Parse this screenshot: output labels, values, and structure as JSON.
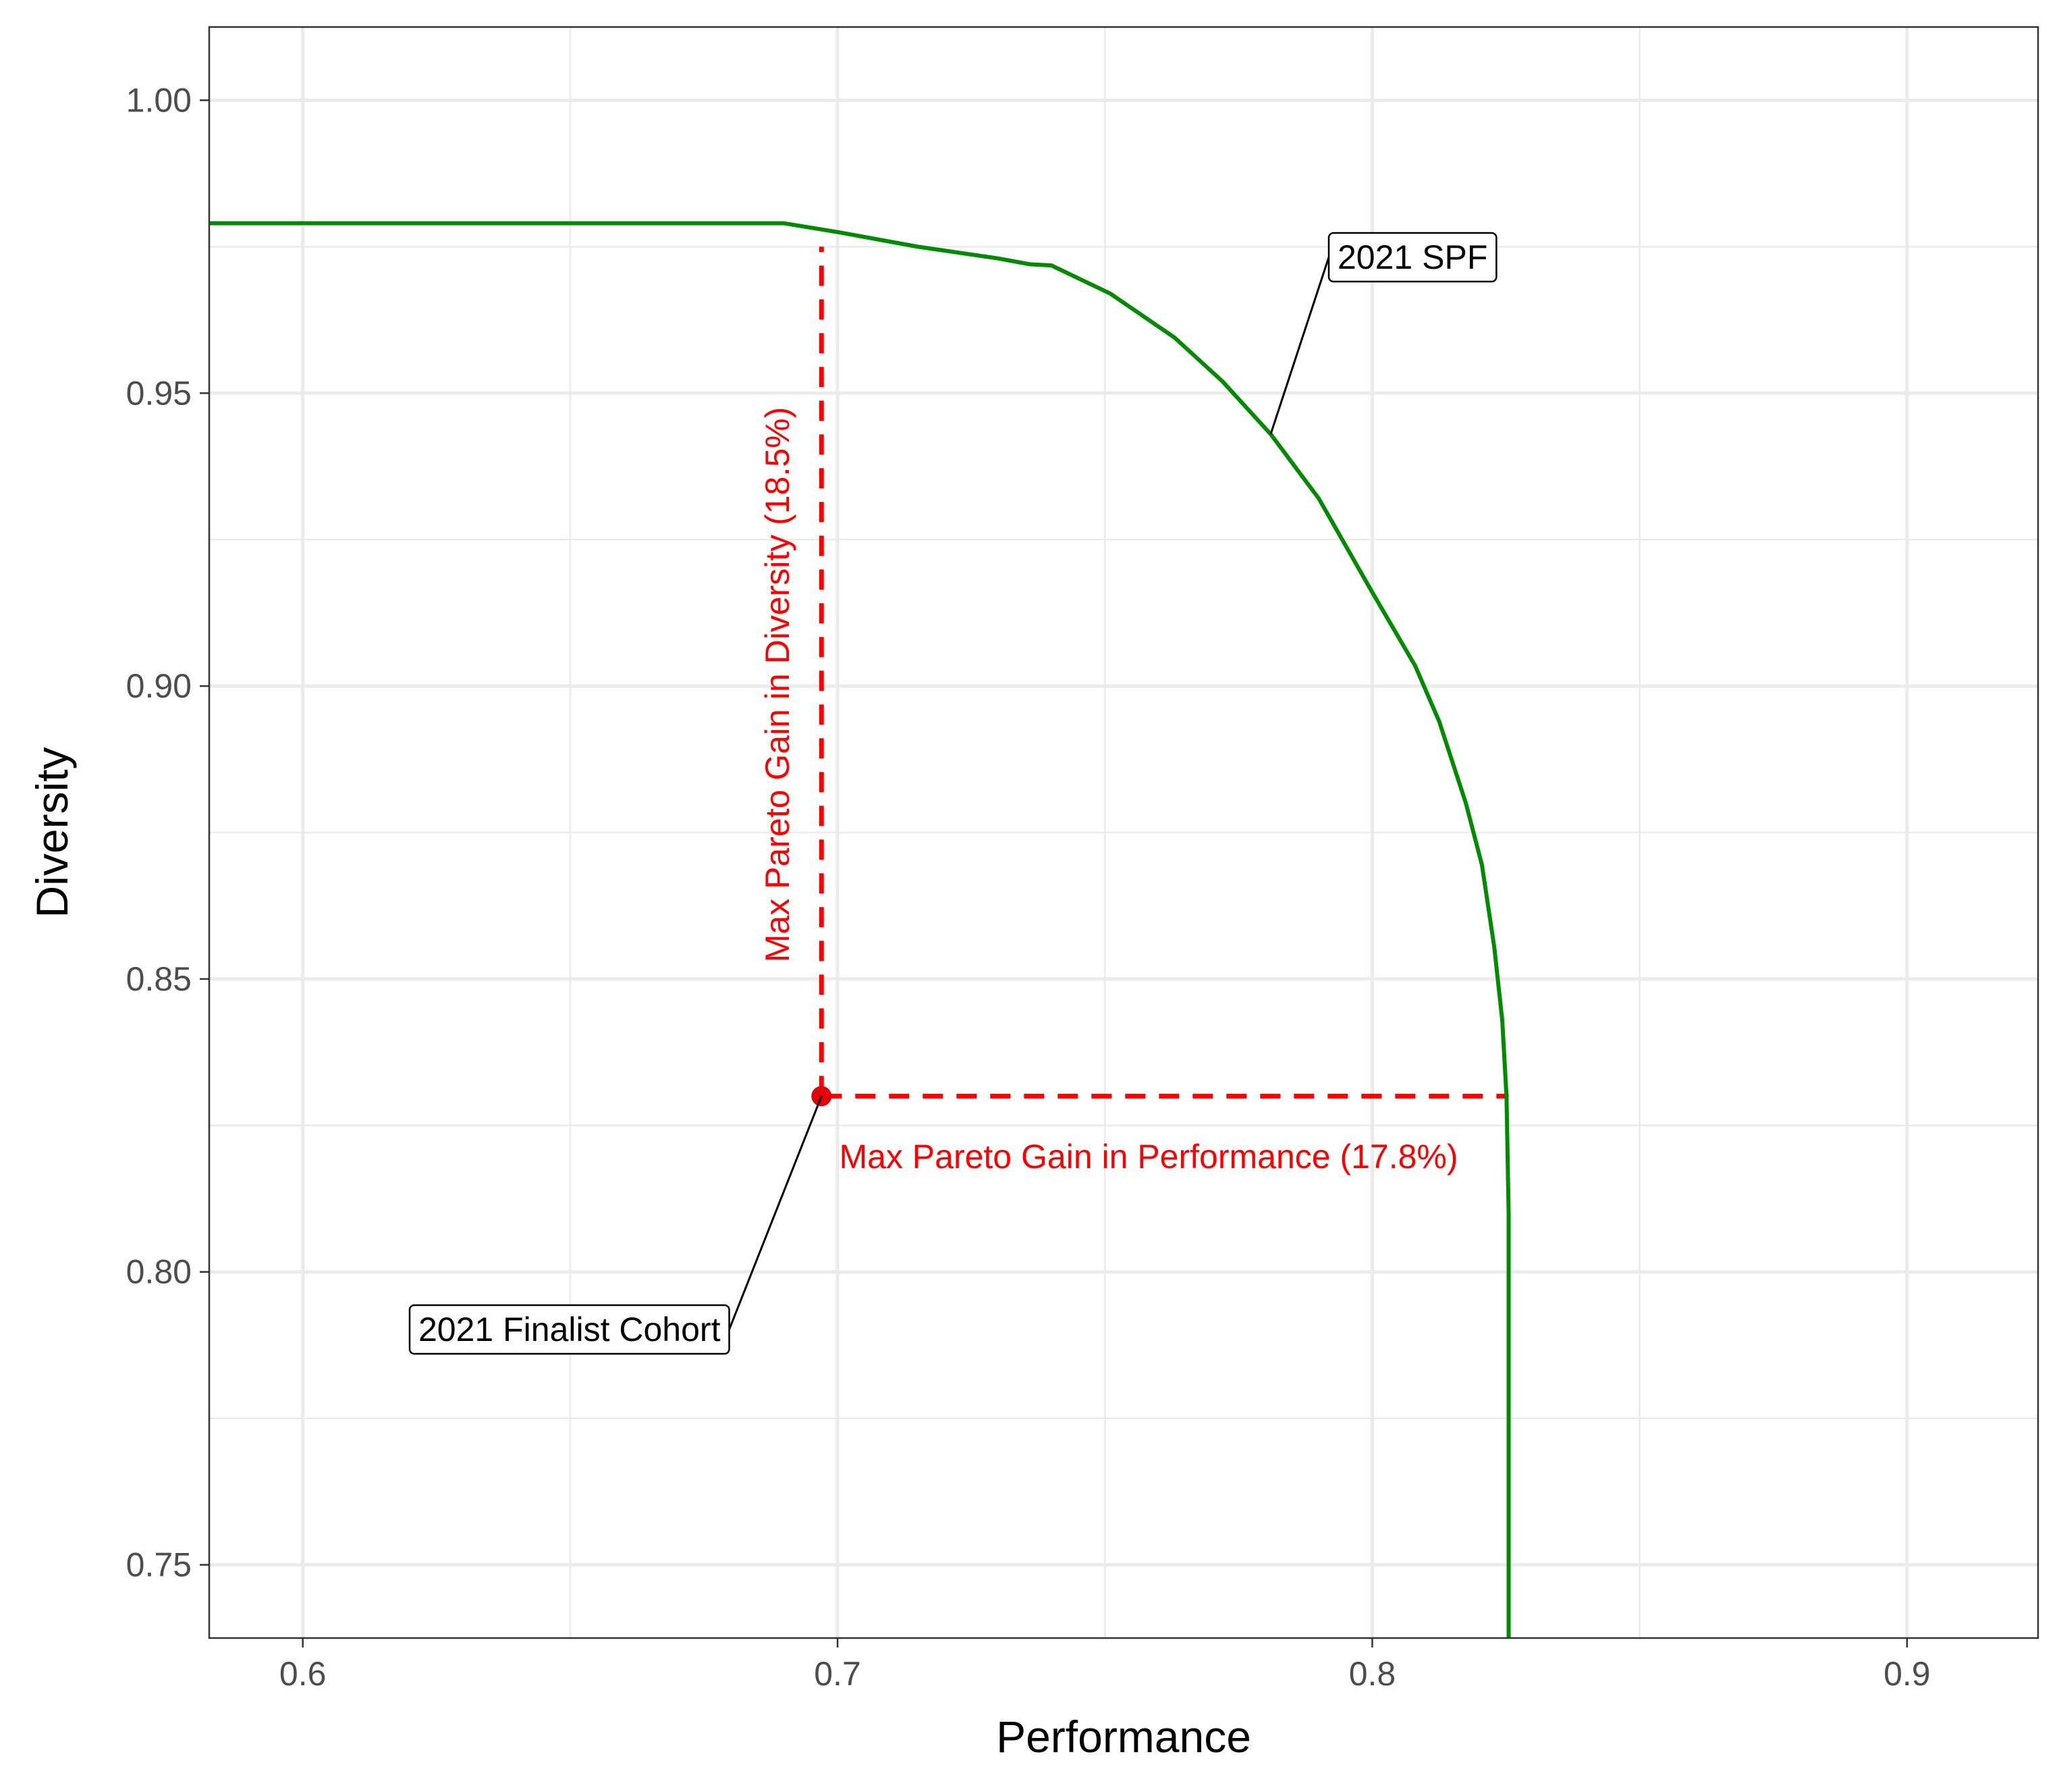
{
  "chart_data": {
    "type": "line",
    "title": "",
    "xlabel": "Performance",
    "ylabel": "Diversity",
    "xlim": [
      0.5825,
      0.9245
    ],
    "ylim": [
      0.7375,
      1.0125
    ],
    "x_ticks": [
      0.6,
      0.7,
      0.8,
      0.9
    ],
    "x_tick_labels": [
      "0.6",
      "0.7",
      "0.8",
      "0.9"
    ],
    "y_ticks": [
      0.75,
      0.8,
      0.85,
      0.9,
      0.95,
      1.0
    ],
    "y_tick_labels": [
      "0.75",
      "0.80",
      "0.85",
      "0.90",
      "0.95",
      "1.00"
    ],
    "grid": true,
    "legend": "none",
    "colors": {
      "frontier": "#008b00",
      "annotation": "#ff0000",
      "point": "#e3000b",
      "grid": "#ebebeb",
      "border": "#333333"
    },
    "series": [
      {
        "color": "#008b00",
        "x": [
          0.5825,
          0.6,
          0.65,
          0.69,
          0.7,
          0.715,
          0.73,
          0.736,
          0.74,
          0.751,
          0.763,
          0.772,
          0.781,
          0.79,
          0.8,
          0.808,
          0.8125,
          0.8175,
          0.8205,
          0.8228,
          0.8243,
          0.8251,
          0.8255,
          0.8255
        ],
        "y": [
          0.979,
          0.979,
          0.979,
          0.979,
          0.9775,
          0.975,
          0.973,
          0.972,
          0.9718,
          0.967,
          0.9595,
          0.952,
          0.943,
          0.932,
          0.916,
          0.9035,
          0.894,
          0.88,
          0.8695,
          0.8555,
          0.843,
          0.83,
          0.81,
          0.7375
        ]
      }
    ],
    "points": [
      {
        "label": "2021 Finalist Cohort",
        "x": 0.697,
        "y": 0.83
      }
    ],
    "annotations": {
      "spf_label": "2021 SPF",
      "cohort_label": "2021 Finalist Cohort",
      "diversity_gain": "Max Pareto Gain in Diversity (18.5%)",
      "performance_gain": "Max Pareto Gain in Performance (17.8%)"
    },
    "dashed_segments": [
      {
        "name": "diversity-gain",
        "x": [
          0.697,
          0.697
        ],
        "y": [
          0.83,
          0.975
        ]
      },
      {
        "name": "performance-gain",
        "x": [
          0.697,
          0.8255
        ],
        "y": [
          0.83,
          0.83
        ]
      }
    ]
  }
}
